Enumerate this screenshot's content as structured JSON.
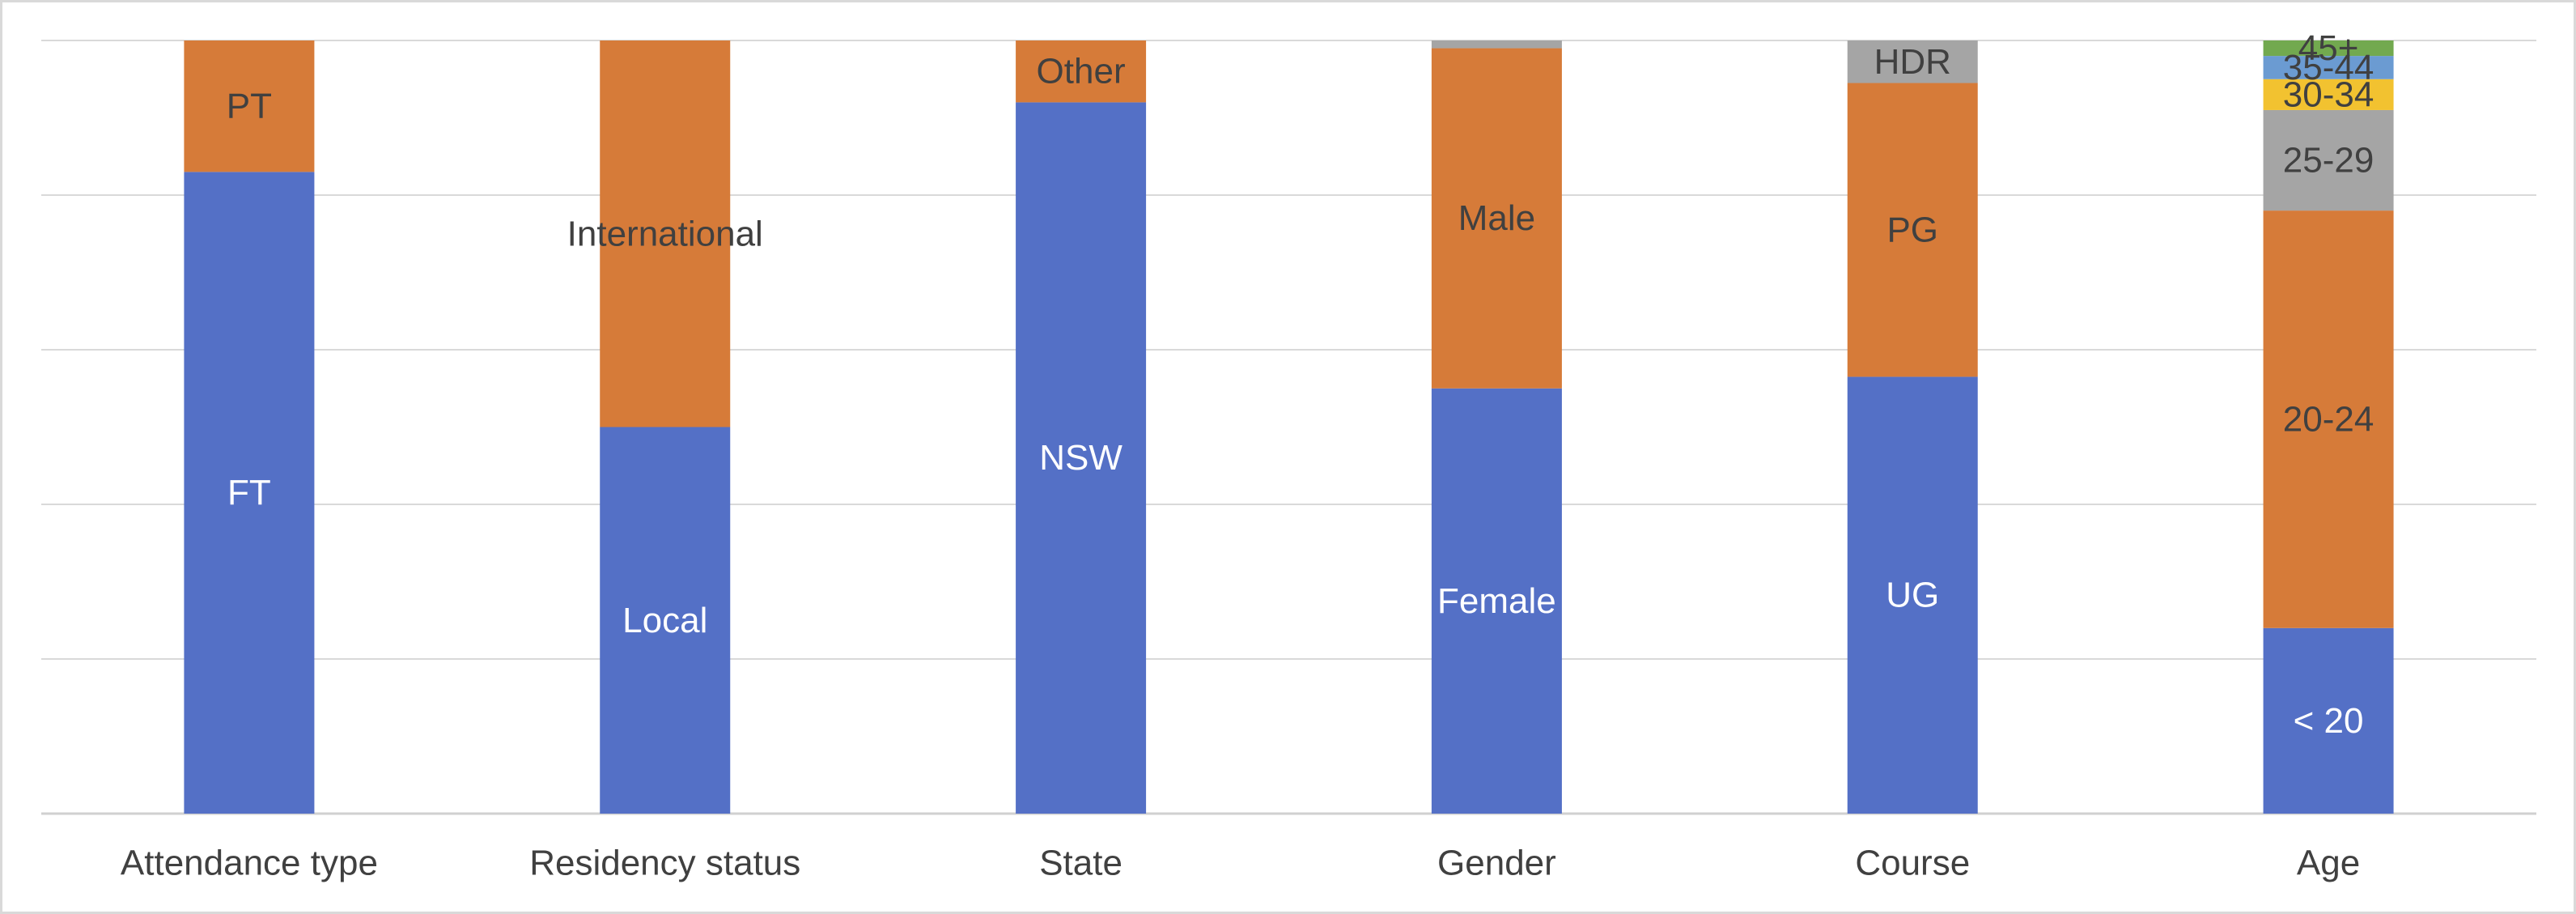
{
  "chart_data": {
    "type": "bar",
    "stacked": true,
    "percent_stacked": true,
    "title": "",
    "xlabel": "",
    "ylabel": "",
    "ylim": [
      0,
      100
    ],
    "grid": true,
    "legend": "none",
    "y_tick_labels_shown": false,
    "categories": [
      "Attendance type",
      "Residency status",
      "State",
      "Gender",
      "Course",
      "Age"
    ],
    "stacks": [
      {
        "category": "Attendance type",
        "segments": [
          {
            "label": "FT",
            "value": 83,
            "color": "#5470c6"
          },
          {
            "label": "PT",
            "value": 17,
            "color": "#d67b39"
          }
        ]
      },
      {
        "category": "Residency status",
        "segments": [
          {
            "label": "Local",
            "value": 50,
            "color": "#5470c6"
          },
          {
            "label": "International",
            "value": 50,
            "color": "#d67b39"
          }
        ]
      },
      {
        "category": "State",
        "segments": [
          {
            "label": "NSW",
            "value": 92,
            "color": "#5470c6"
          },
          {
            "label": "Other",
            "value": 8,
            "color": "#d67b39"
          }
        ]
      },
      {
        "category": "Gender",
        "segments": [
          {
            "label": "Female",
            "value": 55,
            "color": "#5470c6"
          },
          {
            "label": "Male",
            "value": 44,
            "color": "#d67b39"
          },
          {
            "label": "",
            "value": 1,
            "color": "#a5a5a5"
          }
        ]
      },
      {
        "category": "Course",
        "segments": [
          {
            "label": "UG",
            "value": 56.5,
            "color": "#5470c6"
          },
          {
            "label": "PG",
            "value": 38,
            "color": "#d67b39"
          },
          {
            "label": "HDR",
            "value": 5.5,
            "color": "#a5a5a5"
          }
        ]
      },
      {
        "category": "Age",
        "segments": [
          {
            "label": "< 20",
            "value": 24,
            "color": "#5470c6"
          },
          {
            "label": "20-24",
            "value": 54,
            "color": "#d67b39"
          },
          {
            "label": "25-29",
            "value": 13,
            "color": "#a5a5a5"
          },
          {
            "label": "30-34",
            "value": 4,
            "color": "#f2c230"
          },
          {
            "label": "35-44",
            "value": 3,
            "color": "#6b9bd2"
          },
          {
            "label": "45+",
            "value": 2,
            "color": "#72a94f"
          }
        ]
      }
    ]
  }
}
